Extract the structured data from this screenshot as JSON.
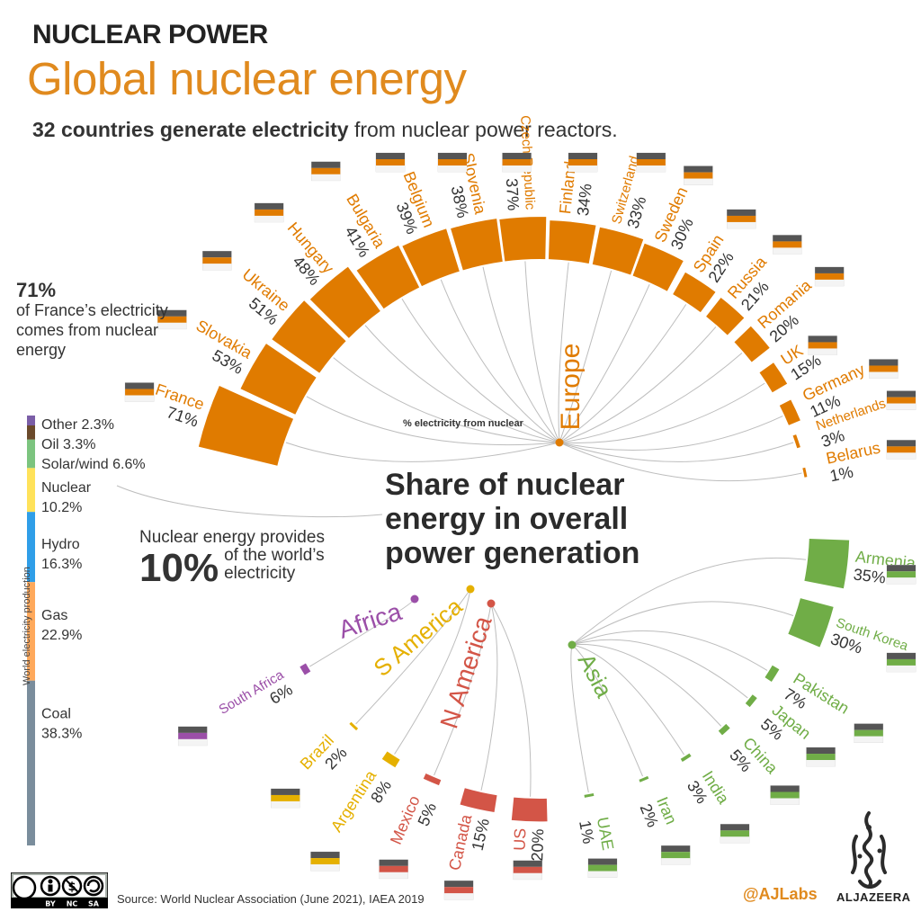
{
  "header": {
    "kicker": "NUCLEAR POWER",
    "title": "Global nuclear energy",
    "subtitle_bold": "32 countries generate electricity",
    "subtitle_rest": " from nuclear power reactors."
  },
  "france_note": {
    "value": "71%",
    "text": "of France’s electricity comes from nuclear energy"
  },
  "provides": {
    "line1": "Nuclear energy provides",
    "pct": "10%",
    "line2": "of the world’s electricity"
  },
  "center_title": "Share of nuclear energy in overall power generation",
  "axis_caption": "% electricity from nuclear",
  "footer": {
    "source": "Source: World Nuclear Association (June 2021), IAEA 2019",
    "credit": "@AJLabs",
    "logo_text": "ALJAZEERA",
    "license": [
      "BY",
      "NC",
      "SA"
    ]
  },
  "colors": {
    "Europe": "#e07b00",
    "Asia": "#70ad47",
    "N America": "#d35547",
    "S America": "#e5b000",
    "Africa": "#9b4fa8"
  },
  "chart_data": [
    {
      "type": "bar",
      "subtype": "radial",
      "title": "Share of nuclear energy in overall power generation",
      "value_label": "% electricity from nuclear",
      "regions": [
        "Europe",
        "Asia",
        "N America",
        "S America",
        "Africa"
      ],
      "categories": [
        "France",
        "Slovakia",
        "Ukraine",
        "Hungary",
        "Bulgaria",
        "Belgium",
        "Slovenia",
        "Czech Republic",
        "Finland",
        "Switzerland",
        "Sweden",
        "Spain",
        "Russia",
        "Romania",
        "UK",
        "Germany",
        "Netherlands",
        "Belarus",
        "Armenia",
        "South Korea",
        "Pakistan",
        "Japan",
        "China",
        "India",
        "Iran",
        "UAE",
        "US",
        "Canada",
        "Mexico",
        "Argentina",
        "Brazil",
        "South Africa"
      ],
      "values": [
        71,
        53,
        51,
        48,
        41,
        39,
        38,
        37,
        34,
        33,
        30,
        22,
        21,
        20,
        15,
        11,
        3,
        1,
        35,
        30,
        7,
        5,
        5,
        3,
        2,
        1,
        20,
        15,
        5,
        8,
        2,
        6
      ],
      "labels": [
        "71%",
        "53%",
        "51%",
        "48%",
        "41%",
        "39%",
        "38%",
        "37%",
        "34%",
        "33%",
        "30%",
        "22%",
        "21%",
        "20%",
        "15%",
        "11%",
        "3%",
        "1%",
        "35%",
        "30%",
        "7%",
        "5%",
        "5%",
        "3%",
        "2%",
        "1%",
        "20%",
        "15%",
        "5%",
        "8%",
        "2%",
        "6%"
      ],
      "region_of": [
        "Europe",
        "Europe",
        "Europe",
        "Europe",
        "Europe",
        "Europe",
        "Europe",
        "Europe",
        "Europe",
        "Europe",
        "Europe",
        "Europe",
        "Europe",
        "Europe",
        "Europe",
        "Europe",
        "Europe",
        "Europe",
        "Asia",
        "Asia",
        "Asia",
        "Asia",
        "Asia",
        "Asia",
        "Asia",
        "Asia",
        "N America",
        "N America",
        "N America",
        "S America",
        "S America",
        "Africa"
      ]
    },
    {
      "type": "bar",
      "subtype": "stacked",
      "title": "World electricity production",
      "categories": [
        "Other",
        "Oil",
        "Solar/wind",
        "Nuclear",
        "Hydro",
        "Gas",
        "Coal"
      ],
      "values": [
        2.3,
        3.3,
        6.6,
        10.2,
        16.3,
        22.9,
        38.3
      ],
      "labels": [
        "Other 2.3%",
        "Oil 3.3%",
        "Solar/wind 6.6%",
        "Nuclear 10.2%",
        "Hydro 16.3%",
        "Gas 22.9%",
        "Coal 38.3%"
      ],
      "colors": [
        "#7b5ea7",
        "#6b4a2b",
        "#7cc47f",
        "#ffe25a",
        "#2f9ee8",
        "#ffa95c",
        "#7a8d9c"
      ]
    }
  ]
}
